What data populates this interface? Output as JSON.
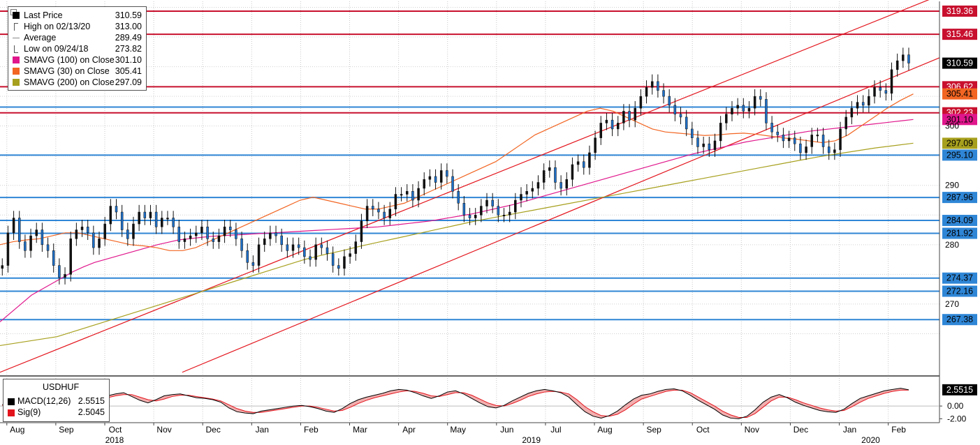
{
  "legend": {
    "items": [
      {
        "label": "Last Price",
        "value": "310.59",
        "color": "#000000",
        "icon": "square-icon"
      },
      {
        "label": "High on 02/13/20",
        "value": "313.00",
        "color": "#555555",
        "icon": "high-marker-icon"
      },
      {
        "label": "Average",
        "value": "289.49",
        "color": "#888888",
        "icon": "average-marker-icon"
      },
      {
        "label": "Low on 09/24/18",
        "value": "273.82",
        "color": "#555555",
        "icon": "low-marker-icon"
      },
      {
        "label": "SMAVG (100)  on Close",
        "value": "301.10",
        "color": "#e0168c",
        "icon": "square-icon"
      },
      {
        "label": "SMAVG (30)  on Close",
        "value": "305.41",
        "color": "#f26522",
        "icon": "square-icon"
      },
      {
        "label": "SMAVG (200)  on Close",
        "value": "297.09",
        "color": "#a7a01e",
        "icon": "square-icon"
      }
    ]
  },
  "macd_legend": {
    "title": "USDHUF",
    "items": [
      {
        "label": "MACD(12,26)",
        "value": "2.5515",
        "color": "#000000"
      },
      {
        "label": "Sig(9)",
        "value": "2.5045",
        "color": "#e3141c"
      }
    ]
  },
  "colors": {
    "red_level": "#c8102e",
    "blue_level": "#2f86d6",
    "candle": "#1f6fc6",
    "sma100": "#e0168c",
    "sma30": "#f26522",
    "sma200": "#a7a01e",
    "channel": "#e3141c"
  },
  "chart_data": {
    "type": "candlestick",
    "title": "USDHUF",
    "ylim": [
      258,
      321
    ],
    "y_ticks": [
      {
        "value": 270,
        "label": "270"
      },
      {
        "value": 280,
        "label": "280"
      },
      {
        "value": 290,
        "label": "290"
      },
      {
        "value": 300,
        "label": "300"
      }
    ],
    "x_ticks": [
      {
        "label": "Aug",
        "t": 0.6
      },
      {
        "label": "Sep",
        "t": 4.9
      },
      {
        "label": "Oct",
        "t": 9.2
      },
      {
        "label": "Nov",
        "t": 13.5
      },
      {
        "label": "Dec",
        "t": 17.8
      },
      {
        "label": "Jan",
        "t": 22.1
      },
      {
        "label": "Feb",
        "t": 26.4
      },
      {
        "label": "Mar",
        "t": 30.7
      },
      {
        "label": "Apr",
        "t": 35.0
      },
      {
        "label": "May",
        "t": 39.3
      },
      {
        "label": "Jun",
        "t": 43.6
      },
      {
        "label": "Jul",
        "t": 47.9
      },
      {
        "label": "Aug",
        "t": 52.2
      },
      {
        "label": "Sep",
        "t": 56.5
      },
      {
        "label": "Oct",
        "t": 60.8
      },
      {
        "label": "Nov",
        "t": 65.1
      },
      {
        "label": "Dec",
        "t": 69.4
      },
      {
        "label": "Jan",
        "t": 73.7
      },
      {
        "label": "Feb",
        "t": 78.0
      }
    ],
    "year_labels": [
      {
        "label": "2018",
        "t": 9.2
      },
      {
        "label": "2019",
        "t": 45.8
      },
      {
        "label": "2020",
        "t": 75.6
      }
    ],
    "horizontal_levels": [
      {
        "value": 319.36,
        "label": "319.36",
        "kind": "red"
      },
      {
        "value": 315.46,
        "label": "315.46",
        "kind": "red"
      },
      {
        "value": 306.62,
        "label": "306.62",
        "kind": "red"
      },
      {
        "value": 302.23,
        "label": "302.23",
        "kind": "red"
      },
      {
        "value": 303.2,
        "label": "",
        "kind": "blue"
      },
      {
        "value": 295.1,
        "label": "295.10",
        "kind": "blue"
      },
      {
        "value": 287.96,
        "label": "287.96",
        "kind": "blue"
      },
      {
        "value": 284.09,
        "label": "284.09",
        "kind": "blue"
      },
      {
        "value": 281.92,
        "label": "281.92",
        "kind": "blue"
      },
      {
        "value": 274.37,
        "label": "274.37",
        "kind": "blue"
      },
      {
        "value": 272.16,
        "label": "272.16",
        "kind": "blue"
      },
      {
        "value": 267.38,
        "label": "267.38",
        "kind": "blue"
      }
    ],
    "value_tags": [
      {
        "value": 310.59,
        "label": "310.59",
        "bg": "#000000",
        "fg": "#ffffff"
      },
      {
        "value": 305.41,
        "label": "305.41",
        "bg": "#f26522",
        "fg": "#000000"
      },
      {
        "value": 301.1,
        "label": "301.10",
        "bg": "#e0168c",
        "fg": "#000000"
      },
      {
        "value": 297.09,
        "label": "297.09",
        "bg": "#a7a01e",
        "fg": "#000000"
      }
    ],
    "close": [
      276.5,
      282.0,
      284.5,
      280.5,
      279.0,
      281.5,
      282.5,
      280.0,
      279.0,
      276.5,
      274.5,
      275.0,
      281.0,
      282.5,
      283.0,
      282.0,
      279.5,
      281.0,
      283.5,
      286.5,
      285.5,
      282.5,
      281.0,
      283.5,
      285.5,
      284.5,
      285.5,
      283.0,
      284.5,
      284.5,
      283.0,
      280.5,
      281.0,
      281.5,
      282.0,
      283.0,
      281.0,
      280.5,
      281.5,
      283.0,
      282.5,
      281.0,
      279.0,
      277.0,
      276.5,
      280.0,
      281.0,
      282.0,
      281.5,
      280.0,
      279.0,
      280.0,
      279.5,
      278.0,
      277.5,
      280.0,
      279.5,
      278.5,
      276.5,
      276.0,
      278.0,
      278.5,
      280.5,
      284.0,
      286.5,
      286.0,
      285.5,
      284.5,
      286.0,
      288.5,
      288.5,
      289.0,
      287.5,
      289.5,
      291.0,
      291.5,
      290.5,
      292.5,
      291.5,
      289.0,
      287.0,
      285.0,
      284.5,
      285.0,
      286.5,
      287.5,
      286.5,
      285.0,
      285.0,
      285.5,
      287.5,
      288.5,
      289.0,
      289.5,
      290.5,
      292.5,
      293.0,
      290.5,
      289.5,
      291.0,
      293.5,
      294.0,
      293.0,
      295.5,
      298.0,
      300.5,
      301.0,
      299.5,
      300.5,
      302.5,
      301.0,
      303.0,
      305.0,
      306.5,
      307.5,
      306.0,
      305.0,
      303.5,
      302.0,
      301.5,
      299.5,
      298.0,
      296.5,
      297.0,
      296.0,
      297.5,
      300.5,
      302.0,
      303.0,
      303.5,
      302.5,
      303.0,
      305.0,
      304.5,
      300.5,
      299.0,
      298.5,
      297.5,
      298.0,
      297.0,
      295.5,
      296.5,
      298.5,
      298.5,
      296.5,
      295.5,
      296.0,
      299.5,
      301.5,
      303.0,
      304.0,
      303.5,
      305.0,
      306.5,
      306.0,
      305.5,
      309.5,
      311.0,
      312.0,
      310.6
    ],
    "sma_100": [
      267.0,
      268.5,
      270.0,
      271.5,
      272.5,
      273.5,
      274.5,
      275.5,
      276.3,
      277.0,
      277.5,
      278.0,
      278.5,
      279.0,
      279.5,
      280.0,
      280.4,
      280.8,
      281.0,
      281.2,
      281.4,
      281.5,
      281.6,
      281.7,
      281.8,
      281.9,
      282.0,
      282.1,
      282.2,
      282.3,
      282.4,
      282.5,
      282.6,
      282.7,
      282.8,
      282.9,
      283.0,
      283.2,
      283.4,
      283.6,
      283.8,
      284.0,
      284.3,
      284.6,
      284.9,
      285.2,
      285.6,
      286.0,
      286.4,
      286.8,
      287.3,
      287.8,
      288.3,
      288.8,
      289.3,
      289.8,
      290.3,
      290.8,
      291.3,
      291.8,
      292.3,
      292.8,
      293.3,
      293.8,
      294.3,
      294.8,
      295.3,
      295.7,
      296.1,
      296.5,
      296.9,
      297.3,
      297.6,
      297.9,
      298.2,
      298.5,
      298.8,
      299.1,
      299.3,
      299.5,
      299.7,
      299.9,
      300.1,
      300.3,
      300.5,
      300.7,
      300.9,
      301.1
    ],
    "sma_30": [
      280.0,
      280.5,
      280.8,
      281.0,
      281.5,
      282.0,
      282.0,
      281.5,
      281.0,
      280.5,
      280.0,
      279.8,
      279.5,
      279.0,
      279.0,
      279.5,
      280.5,
      281.5,
      282.5,
      283.5,
      284.5,
      285.5,
      286.5,
      287.5,
      288.0,
      287.5,
      287.0,
      286.5,
      286.0,
      286.0,
      286.5,
      287.0,
      288.0,
      289.0,
      290.0,
      291.0,
      292.0,
      293.0,
      294.0,
      295.5,
      297.0,
      298.5,
      299.5,
      300.5,
      301.5,
      302.5,
      303.0,
      302.5,
      301.5,
      300.5,
      299.5,
      299.0,
      298.8,
      298.6,
      298.4,
      298.5,
      298.7,
      298.8,
      298.6,
      298.3,
      298.0,
      297.8,
      297.5,
      297.2,
      297.5,
      298.5,
      300.0,
      301.5,
      303.0,
      304.3,
      305.4
    ],
    "sma_200": [
      263.0,
      263.5,
      264.0,
      264.5,
      265.5,
      266.5,
      267.5,
      268.5,
      269.5,
      270.5,
      271.5,
      272.5,
      273.5,
      274.5,
      275.5,
      276.5,
      277.5,
      278.3,
      279.0,
      279.8,
      280.5,
      281.2,
      281.9,
      282.6,
      283.3,
      284.0,
      284.6,
      285.2,
      285.8,
      286.4,
      287.0,
      287.6,
      288.2,
      288.8,
      289.4,
      290.0,
      290.6,
      291.2,
      291.8,
      292.4,
      293.0,
      293.6,
      294.2,
      294.8,
      295.3,
      295.8,
      296.3,
      296.7,
      297.1
    ],
    "channel_upper": [
      [
        0,
        258.5
      ],
      [
        82.5,
        322.0
      ]
    ],
    "channel_lower": [
      [
        16.0,
        258.5
      ],
      [
        82.5,
        311.5
      ]
    ],
    "macd": {
      "ylim": [
        -2.4,
        4.4
      ],
      "y_ticks": [
        {
          "value": 0.0,
          "label": "0.00"
        },
        {
          "value": -2.0,
          "label": "-2.00"
        }
      ],
      "last_tag": "2.5515",
      "macd_values": [
        0.2,
        0.8,
        1.5,
        1.4,
        0.9,
        0.8,
        1.1,
        1.6,
        1.8,
        1.7,
        1.2,
        0.8,
        1.2,
        1.6,
        1.9,
        2.1,
        1.5,
        0.9,
        0.5,
        1.0,
        1.6,
        1.8,
        1.9,
        1.6,
        1.3,
        1.2,
        1.0,
        0.6,
        -0.3,
        -0.9,
        -1.1,
        -1.2,
        -0.8,
        -0.6,
        -0.4,
        -0.2,
        0.0,
        0.1,
        -0.1,
        -0.4,
        -0.8,
        -1.0,
        -0.4,
        0.4,
        1.0,
        1.4,
        1.7,
        2.0,
        2.4,
        2.6,
        2.5,
        2.1,
        1.6,
        1.2,
        1.6,
        2.2,
        2.4,
        1.9,
        1.2,
        0.5,
        -0.1,
        -0.3,
        0.1,
        0.8,
        1.4,
        2.0,
        2.4,
        2.6,
        2.4,
        2.1,
        1.4,
        0.2,
        -0.9,
        -1.6,
        -1.9,
        -1.5,
        -0.8,
        0.2,
        1.1,
        1.7,
        1.9,
        2.3,
        2.6,
        2.7,
        2.4,
        1.7,
        0.9,
        0.2,
        -0.5,
        -1.4,
        -1.9,
        -2.0,
        -1.6,
        -0.6,
        0.6,
        1.4,
        1.8,
        1.3,
        0.6,
        0.1,
        -0.3,
        -0.7,
        -0.9,
        -1.0,
        -0.5,
        0.4,
        1.2,
        1.6,
        2.0,
        2.4,
        2.6,
        2.8,
        2.5515
      ],
      "signal_values": [
        0.1,
        0.4,
        0.9,
        1.2,
        1.2,
        1.0,
        0.9,
        1.2,
        1.5,
        1.6,
        1.5,
        1.2,
        1.1,
        1.3,
        1.6,
        1.8,
        1.8,
        1.4,
        1.0,
        0.8,
        1.1,
        1.5,
        1.7,
        1.7,
        1.5,
        1.3,
        1.1,
        0.8,
        0.2,
        -0.4,
        -0.8,
        -1.0,
        -1.0,
        -0.8,
        -0.6,
        -0.4,
        -0.2,
        0.0,
        0.0,
        -0.2,
        -0.5,
        -0.8,
        -0.7,
        -0.2,
        0.4,
        0.9,
        1.3,
        1.6,
        1.9,
        2.2,
        2.4,
        2.3,
        2.0,
        1.6,
        1.5,
        1.8,
        2.1,
        2.1,
        1.7,
        1.1,
        0.5,
        0.1,
        0.0,
        0.4,
        0.9,
        1.5,
        1.9,
        2.2,
        2.3,
        2.2,
        1.9,
        1.0,
        -0.1,
        -0.9,
        -1.5,
        -1.6,
        -1.3,
        -0.6,
        0.3,
        1.1,
        1.5,
        1.9,
        2.3,
        2.5,
        2.5,
        2.1,
        1.4,
        0.7,
        0.0,
        -0.8,
        -1.4,
        -1.8,
        -1.8,
        -1.2,
        -0.2,
        0.8,
        1.4,
        1.4,
        1.0,
        0.5,
        0.1,
        -0.3,
        -0.6,
        -0.8,
        -0.7,
        -0.1,
        0.6,
        1.2,
        1.6,
        2.0,
        2.3,
        2.5,
        2.5045
      ]
    }
  }
}
